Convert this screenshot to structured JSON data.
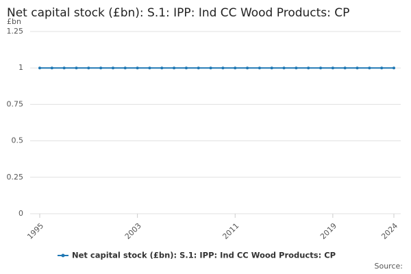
{
  "chart_data": {
    "type": "line",
    "title": "Net capital stock (£bn): S.1: IPP: Ind CC Wood Products: CP",
    "y_unit": "£bn",
    "source": "Source:",
    "x": [
      1995,
      1996,
      1997,
      1998,
      1999,
      2000,
      2001,
      2002,
      2003,
      2004,
      2005,
      2006,
      2007,
      2008,
      2009,
      2010,
      2011,
      2012,
      2013,
      2014,
      2015,
      2016,
      2017,
      2018,
      2019,
      2020,
      2021,
      2022,
      2023,
      2024
    ],
    "series": [
      {
        "name": "Net capital stock (£bn): S.1: IPP: Ind CC Wood Products: CP",
        "color": "#1f78b4",
        "values": [
          1,
          1,
          1,
          1,
          1,
          1,
          1,
          1,
          1,
          1,
          1,
          1,
          1,
          1,
          1,
          1,
          1,
          1,
          1,
          1,
          1,
          1,
          1,
          1,
          1,
          1,
          1,
          1,
          1,
          1
        ]
      }
    ],
    "xlim": [
      1995,
      2024
    ],
    "xticks": [
      1995,
      2003,
      2011,
      2019,
      2024
    ],
    "ylim": [
      0,
      1.25
    ],
    "yticks": [
      0,
      0.25,
      0.5,
      0.75,
      1,
      1.25
    ],
    "grid": true
  }
}
